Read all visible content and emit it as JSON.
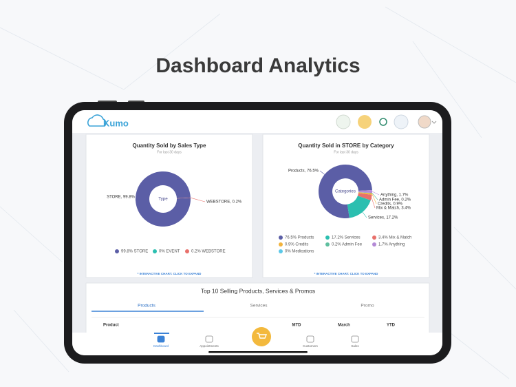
{
  "header": {
    "title": "Dashboard Analytics"
  },
  "app": {
    "logo": "Kumo"
  },
  "chart_data": [
    {
      "type": "pie",
      "title": "Quantity Sold by Sales Type",
      "subtitle": "For last 30 days",
      "center_label": "Type",
      "categories": [
        "STORE",
        "EVENT",
        "WEBSTORE"
      ],
      "values": [
        99.8,
        0,
        0.2
      ],
      "value_labels": [
        "STORE, 99.8%",
        null,
        "WEBSTORE, 0.2%"
      ],
      "legend_labels": [
        "99.8% STORE",
        "0% EVENT",
        "0.2% WEBSTORE"
      ],
      "colors": [
        "#5b5ea6",
        "#2bbfb0",
        "#e8706b"
      ],
      "note": "* INTERACTIVE CHART. CLICK TO EXPAND"
    },
    {
      "type": "pie",
      "title": "Quantity Sold in STORE by Category",
      "subtitle": "For last 30 days",
      "center_label": "Categories",
      "categories": [
        "Products",
        "Services",
        "Mix & Match",
        "Credits",
        "Admin Fee",
        "Anything",
        "Medications"
      ],
      "values": [
        76.5,
        17.2,
        3.4,
        0.9,
        0.2,
        1.7,
        0
      ],
      "value_labels": [
        "Products, 76.5%",
        "Services, 17.2%",
        "Mix & Match, 3.4%",
        "Credits, 0.9%",
        "Admin Fee, 0.2%",
        "Anything, 1.7%",
        null
      ],
      "legend_labels": [
        "76.5% Products",
        "17.2% Services",
        "3.4% Mix & Match",
        "0.9% Credits",
        "0.2% Admin Fee",
        "1.7% Anything",
        "0% Medications"
      ],
      "colors": [
        "#5b5ea6",
        "#2bbfb0",
        "#e8706b",
        "#f2b33d",
        "#5fbf9f",
        "#b48ad6",
        "#5bc8e8"
      ],
      "note": "* INTERACTIVE CHART. CLICK TO EXPAND"
    }
  ],
  "table": {
    "title": "Top 10 Selling Products, Services & Promos",
    "tabs": [
      "Products",
      "Services",
      "Promo"
    ],
    "active_tab": 0,
    "columns": [
      "Product",
      "MTD",
      "March",
      "YTD"
    ]
  },
  "nav": {
    "items": [
      "Dashboard",
      "Appointments",
      "Customers",
      "Sales"
    ]
  }
}
